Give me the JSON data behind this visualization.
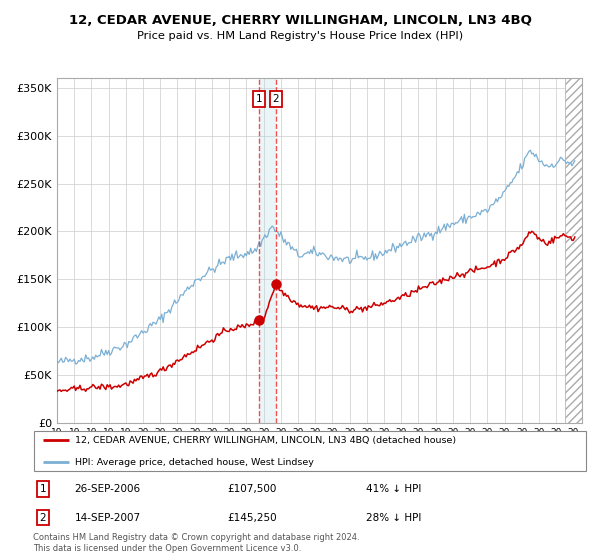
{
  "title": "12, CEDAR AVENUE, CHERRY WILLINGHAM, LINCOLN, LN3 4BQ",
  "subtitle": "Price paid vs. HM Land Registry's House Price Index (HPI)",
  "hpi_legend": "HPI: Average price, detached house, West Lindsey",
  "price_legend": "12, CEDAR AVENUE, CHERRY WILLINGHAM, LINCOLN, LN3 4BQ (detached house)",
  "transaction1_date": "26-SEP-2006",
  "transaction1_price": 107500,
  "transaction1_label": "1",
  "transaction1_year": 2006.74,
  "transaction2_date": "14-SEP-2007",
  "transaction2_price": 145250,
  "transaction2_label": "2",
  "transaction2_year": 2007.71,
  "transaction1_note": "41% ↓ HPI",
  "transaction2_note": "28% ↓ HPI",
  "ylabel_ticks": [
    "£0",
    "£50K",
    "£100K",
    "£150K",
    "£200K",
    "£250K",
    "£300K",
    "£350K"
  ],
  "ytick_vals": [
    0,
    50000,
    100000,
    150000,
    200000,
    250000,
    300000,
    350000
  ],
  "hpi_color": "#7bafd4",
  "price_color": "#cc0000",
  "vline_color": "#ee3333",
  "background_color": "#ffffff",
  "grid_color": "#cccccc",
  "footnote": "Contains HM Land Registry data © Crown copyright and database right 2024.\nThis data is licensed under the Open Government Licence v3.0.",
  "xmin": 1995.0,
  "xmax": 2025.5,
  "ymin": 0,
  "ymax": 360000,
  "hatch_start": 2024.5
}
